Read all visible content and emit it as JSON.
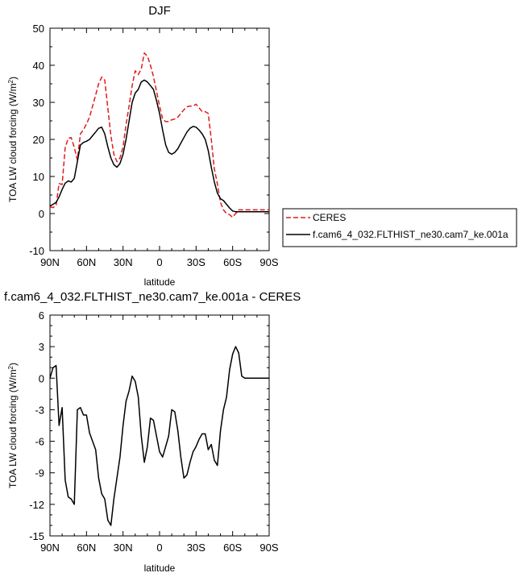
{
  "chart_data": [
    {
      "type": "line",
      "title": "DJF",
      "xlabel": "latitude",
      "ylabel": "TOA LW cloud forcing (W/m²)",
      "x": [
        90,
        87.5,
        85,
        82.5,
        80,
        77.5,
        75,
        72.5,
        70,
        67.5,
        65,
        62.5,
        60,
        57.5,
        55,
        52.5,
        50,
        47.5,
        45,
        42.5,
        40,
        37.5,
        35,
        32.5,
        30,
        27.5,
        25,
        22.5,
        20,
        17.5,
        15,
        12.5,
        10,
        7.5,
        5,
        2.5,
        0,
        -2.5,
        -5,
        -7.5,
        -10,
        -12.5,
        -15,
        -17.5,
        -20,
        -22.5,
        -25,
        -27.5,
        -30,
        -32.5,
        -35,
        -37.5,
        -40,
        -42.5,
        -45,
        -47.5,
        -50,
        -52.5,
        -55,
        -57.5,
        -60,
        -62.5,
        -65,
        -67.5,
        -70,
        -72.5,
        -75,
        -77.5,
        -80,
        -82.5,
        -85,
        -87.5,
        -90
      ],
      "xticks": [
        "90N",
        "60N",
        "30N",
        "0",
        "30S",
        "60S",
        "90S"
      ],
      "xlim": [
        90,
        -90
      ],
      "ylim": [
        -10,
        50
      ],
      "yticks": [
        -10,
        0,
        10,
        20,
        30,
        40,
        50
      ],
      "legend_position": "right",
      "series": [
        {
          "name": "CERES",
          "color": "#e41a1c",
          "style": "dashed",
          "values": [
            1.8,
            1.6,
            2.2,
            8.1,
            7.8,
            17.8,
            20.3,
            20.5,
            17.8,
            14.5,
            21.5,
            22.6,
            24.2,
            26.0,
            29.0,
            32.0,
            35.0,
            36.8,
            36.0,
            28.5,
            21.0,
            16.0,
            14.0,
            15.0,
            18.0,
            24.0,
            29.0,
            34.5,
            38.5,
            37.5,
            39.0,
            43.3,
            42.5,
            40.0,
            37.0,
            33.0,
            29.0,
            25.5,
            24.8,
            24.8,
            25.3,
            25.5,
            26.0,
            27.0,
            28.0,
            28.8,
            29.0,
            29.0,
            29.5,
            28.5,
            27.5,
            27.5,
            27.0,
            20.0,
            12.0,
            8.0,
            3.0,
            1.0,
            0.0,
            -0.3,
            -1.0,
            0.0,
            1.0,
            1.0,
            1.0,
            1.0,
            1.0,
            1.0,
            1.0,
            1.0,
            1.0,
            1.0,
            1.0
          ]
        },
        {
          "name": "f.cam6_4_032.FLTHIST_ne30.cam7_ke.001a",
          "color": "#000000",
          "style": "solid",
          "values": [
            2.0,
            2.5,
            3.0,
            4.5,
            6.5,
            8.2,
            8.8,
            8.5,
            9.5,
            14.0,
            18.5,
            19.2,
            19.5,
            20.0,
            21.0,
            22.0,
            23.0,
            23.3,
            21.5,
            18.0,
            15.0,
            13.2,
            12.5,
            13.5,
            16.0,
            20.0,
            25.0,
            30.0,
            32.5,
            33.5,
            35.5,
            36.0,
            35.5,
            34.5,
            33.5,
            30.5,
            27.0,
            22.5,
            18.5,
            16.5,
            16.0,
            16.5,
            17.5,
            19.0,
            20.5,
            22.0,
            23.0,
            23.5,
            23.3,
            22.5,
            21.5,
            20.0,
            17.0,
            12.5,
            8.5,
            5.5,
            4.0,
            3.5,
            2.5,
            1.5,
            0.7,
            0.5,
            0.5,
            0.5,
            0.5,
            0.5,
            0.5,
            0.5,
            0.5,
            0.5,
            0.5,
            0.5,
            0.5
          ]
        }
      ]
    },
    {
      "type": "line",
      "title": "f.cam6_4_032.FLTHIST_ne30.cam7_ke.001a - CERES",
      "xlabel": "latitude",
      "ylabel": "TOA LW cloud forcing (W/m²)",
      "x": [
        90,
        87.5,
        85,
        82.5,
        80,
        77.5,
        75,
        72.5,
        70,
        67.5,
        65,
        62.5,
        60,
        57.5,
        55,
        52.5,
        50,
        47.5,
        45,
        42.5,
        40,
        37.5,
        35,
        32.5,
        30,
        27.5,
        25,
        22.5,
        20,
        17.5,
        15,
        12.5,
        10,
        7.5,
        5,
        2.5,
        0,
        -2.5,
        -5,
        -7.5,
        -10,
        -12.5,
        -15,
        -17.5,
        -20,
        -22.5,
        -25,
        -27.5,
        -30,
        -32.5,
        -35,
        -37.5,
        -40,
        -42.5,
        -45,
        -47.5,
        -50,
        -52.5,
        -55,
        -57.5,
        -60,
        -62.5,
        -65,
        -67.5,
        -70,
        -72.5,
        -75,
        -77.5,
        -80,
        -82.5,
        -85,
        -87.5,
        -90
      ],
      "xticks": [
        "90N",
        "60N",
        "30N",
        "0",
        "30S",
        "60S",
        "90S"
      ],
      "xlim": [
        90,
        -90
      ],
      "ylim": [
        -15,
        6
      ],
      "yticks": [
        -15,
        -12,
        -9,
        -6,
        -3,
        0,
        3,
        6
      ],
      "series": [
        {
          "name": "",
          "color": "#000000",
          "style": "solid",
          "values": [
            0.0,
            1.0,
            1.2,
            -4.5,
            -2.8,
            -9.7,
            -11.3,
            -11.5,
            -12.0,
            -3.0,
            -2.8,
            -3.5,
            -3.5,
            -5.2,
            -6.0,
            -6.8,
            -9.5,
            -11.0,
            -11.5,
            -13.5,
            -14.0,
            -11.5,
            -9.5,
            -7.5,
            -4.5,
            -2.2,
            -1.2,
            0.2,
            -0.3,
            -1.8,
            -5.5,
            -8.0,
            -6.5,
            -3.8,
            -4.0,
            -5.5,
            -7.0,
            -7.5,
            -6.5,
            -5.5,
            -3.0,
            -3.2,
            -5.0,
            -7.5,
            -9.5,
            -9.2,
            -8.0,
            -7.0,
            -6.5,
            -5.8,
            -5.3,
            -5.3,
            -6.8,
            -6.3,
            -7.8,
            -8.3,
            -5.0,
            -3.0,
            -1.8,
            0.8,
            2.3,
            3.0,
            2.4,
            0.2,
            0.0,
            0.0,
            0.0,
            0.0,
            0.0,
            0.0,
            0.0,
            0.0,
            0.0
          ]
        }
      ]
    }
  ]
}
